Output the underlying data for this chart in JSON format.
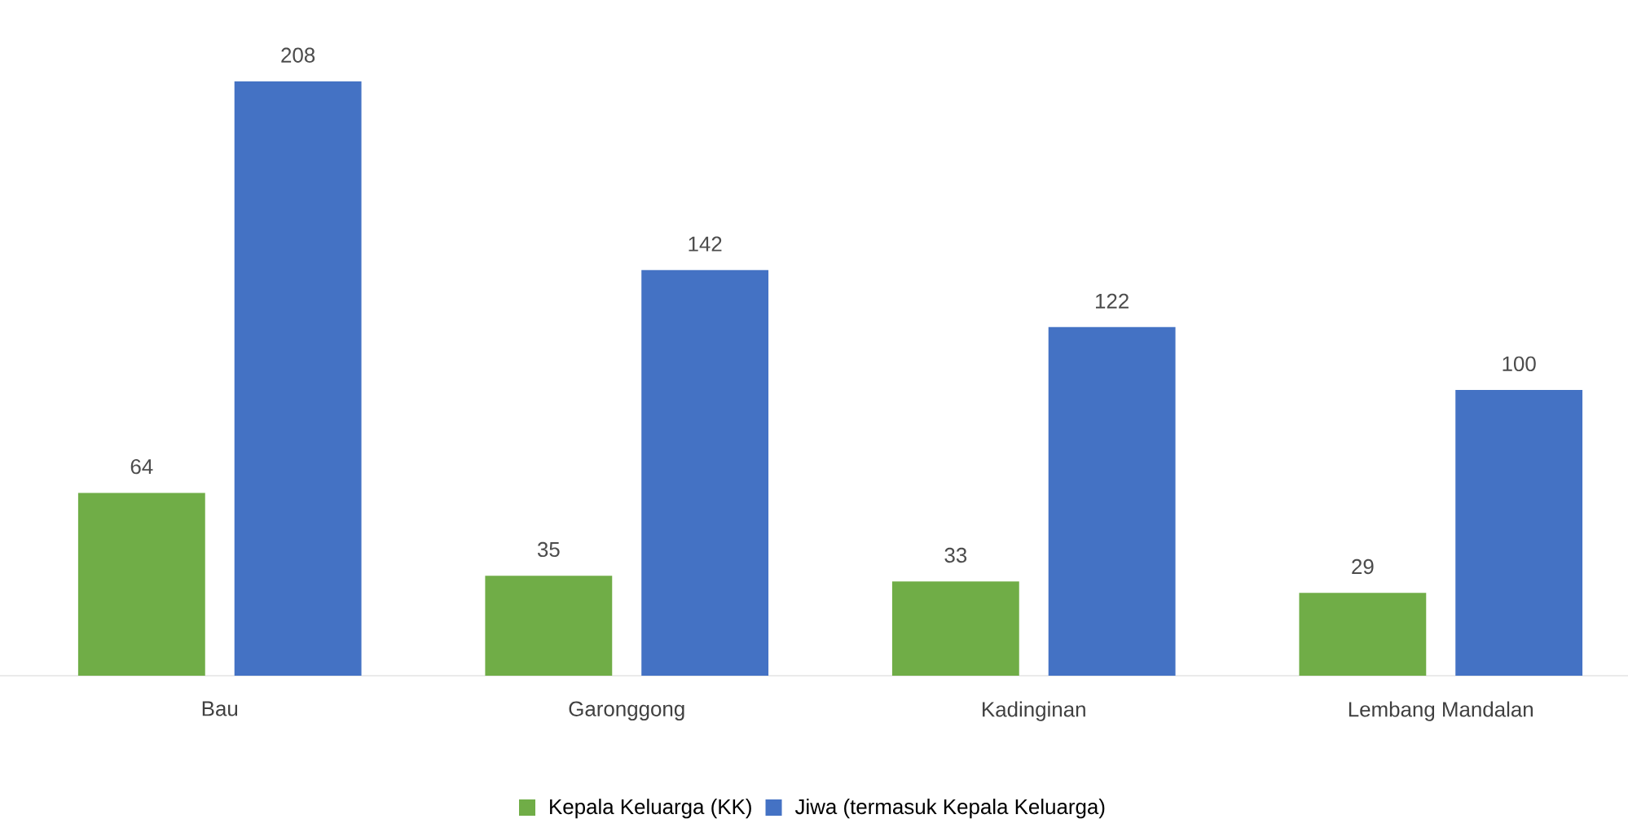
{
  "chart_data": {
    "type": "bar",
    "categories": [
      "Bau",
      "Garonggong",
      "Kadinginan",
      "Lembang Mandalan"
    ],
    "series": [
      {
        "name": "Kepala Keluarga (KK)",
        "color": "#70ad47",
        "values": [
          64,
          35,
          33,
          29
        ]
      },
      {
        "name": "Jiwa (termasuk Kepala Keluarga)",
        "color": "#4472c4",
        "values": [
          208,
          142,
          122,
          100
        ]
      }
    ],
    "data_labels": true,
    "legend": "bottom"
  }
}
